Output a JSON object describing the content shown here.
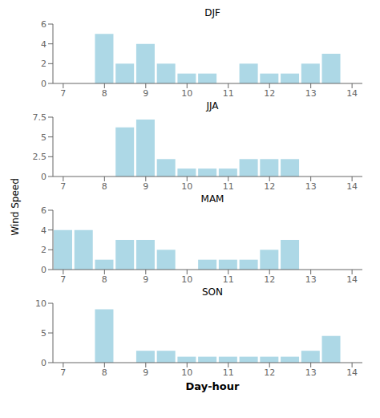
{
  "ylabel": "Wind Speed",
  "chart_data": [
    {
      "type": "bar",
      "title": "DJF",
      "x": [
        7.5,
        8.0,
        8.5,
        9.0,
        9.5,
        10.0,
        10.5,
        11.0,
        11.5,
        12.0,
        12.5,
        13.0,
        13.5
      ],
      "values": [
        0.0,
        5.0,
        2.0,
        4.0,
        2.0,
        1.0,
        1.0,
        0.0,
        2.0,
        1.0,
        1.0,
        2.0,
        3.0
      ],
      "color": "#add8e6",
      "xlim": [
        6.75,
        14.25
      ],
      "xticks": [
        7,
        8,
        9,
        10,
        11,
        12,
        13,
        14
      ],
      "ylim": [
        0,
        6
      ],
      "yticks": [
        0,
        2,
        4,
        6
      ],
      "grid": false
    },
    {
      "type": "bar",
      "title": "JJA",
      "x": [
        7.5,
        8.0,
        8.5,
        9.0,
        9.5,
        10.0,
        10.5,
        11.0,
        11.5,
        12.0,
        12.5,
        13.0,
        13.5
      ],
      "values": [
        0.0,
        0.0,
        6.2,
        7.2,
        2.2,
        1.0,
        1.0,
        1.0,
        2.2,
        2.2,
        2.2,
        0.0,
        0.0
      ],
      "color": "#add8e6",
      "xlim": [
        6.75,
        14.25
      ],
      "xticks": [
        7,
        8,
        9,
        10,
        11,
        12,
        13,
        14
      ],
      "ylim": [
        0,
        7.5
      ],
      "yticks": [
        0,
        2.5,
        5,
        7.5
      ],
      "grid": false
    },
    {
      "type": "bar",
      "title": "MAM",
      "x": [
        7.0,
        7.5,
        8.0,
        8.5,
        9.0,
        9.5,
        10.0,
        10.5,
        11.0,
        11.5,
        12.0,
        12.5,
        13.0,
        13.5
      ],
      "values": [
        4.0,
        4.0,
        1.0,
        3.0,
        3.0,
        2.0,
        0.0,
        1.0,
        1.0,
        1.0,
        2.0,
        3.0,
        0.0,
        0.0
      ],
      "color": "#add8e6",
      "xlim": [
        6.75,
        14.25
      ],
      "xticks": [
        7,
        8,
        9,
        10,
        11,
        12,
        13,
        14
      ],
      "ylim": [
        0,
        6
      ],
      "yticks": [
        0,
        2,
        4,
        6
      ],
      "grid": false
    },
    {
      "type": "bar",
      "title": "SON",
      "x": [
        7.5,
        8.0,
        8.5,
        9.0,
        9.5,
        10.0,
        10.5,
        11.0,
        11.5,
        12.0,
        12.5,
        13.0,
        13.5
      ],
      "values": [
        0.0,
        9.0,
        0.0,
        2.0,
        2.0,
        1.0,
        1.0,
        1.0,
        1.0,
        1.0,
        1.0,
        2.0,
        4.5
      ],
      "color": "#add8e6",
      "xlim": [
        6.75,
        14.25
      ],
      "xticks": [
        7,
        8,
        9,
        10,
        11,
        12,
        13,
        14
      ],
      "ylim": [
        0,
        10
      ],
      "yticks": [
        0,
        5,
        10
      ],
      "xlabel": "Day-hour",
      "grid": false
    }
  ]
}
